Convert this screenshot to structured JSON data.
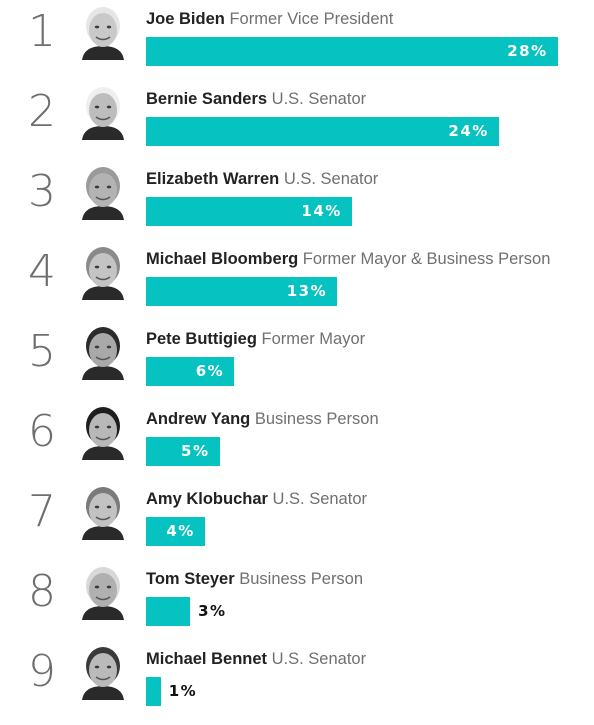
{
  "chart_data": {
    "type": "bar",
    "orientation": "horizontal",
    "value_suffix": "%",
    "bar_color": "#06c2c0",
    "candidates": [
      {
        "rank": "1",
        "name": "Joe Biden",
        "title": "Former Vice President",
        "value": 28,
        "label": "28%",
        "photo_icon": "joe-biden-photo"
      },
      {
        "rank": "2",
        "name": "Bernie Sanders",
        "title": "U.S. Senator",
        "value": 24,
        "label": "24%",
        "photo_icon": "bernie-sanders-photo"
      },
      {
        "rank": "3",
        "name": "Elizabeth Warren",
        "title": "U.S. Senator",
        "value": 14,
        "label": "14%",
        "photo_icon": "elizabeth-warren-photo"
      },
      {
        "rank": "4",
        "name": "Michael Bloomberg",
        "title": "Former Mayor & Business Person",
        "value": 13,
        "label": "13%",
        "photo_icon": "michael-bloomberg-photo"
      },
      {
        "rank": "5",
        "name": "Pete Buttigieg",
        "title": "Former Mayor",
        "value": 6,
        "label": "6%",
        "photo_icon": "pete-buttigieg-photo"
      },
      {
        "rank": "6",
        "name": "Andrew Yang",
        "title": "Business Person",
        "value": 5,
        "label": "5%",
        "photo_icon": "andrew-yang-photo"
      },
      {
        "rank": "7",
        "name": "Amy Klobuchar",
        "title": "U.S. Senator",
        "value": 4,
        "label": "4%",
        "photo_icon": "amy-klobuchar-photo"
      },
      {
        "rank": "8",
        "name": "Tom Steyer",
        "title": "Business Person",
        "value": 3,
        "label": "3%",
        "photo_icon": "tom-steyer-photo"
      },
      {
        "rank": "9",
        "name": "Michael Bennet",
        "title": "U.S. Senator",
        "value": 1,
        "label": "1%",
        "photo_icon": "michael-bennet-photo"
      }
    ]
  }
}
